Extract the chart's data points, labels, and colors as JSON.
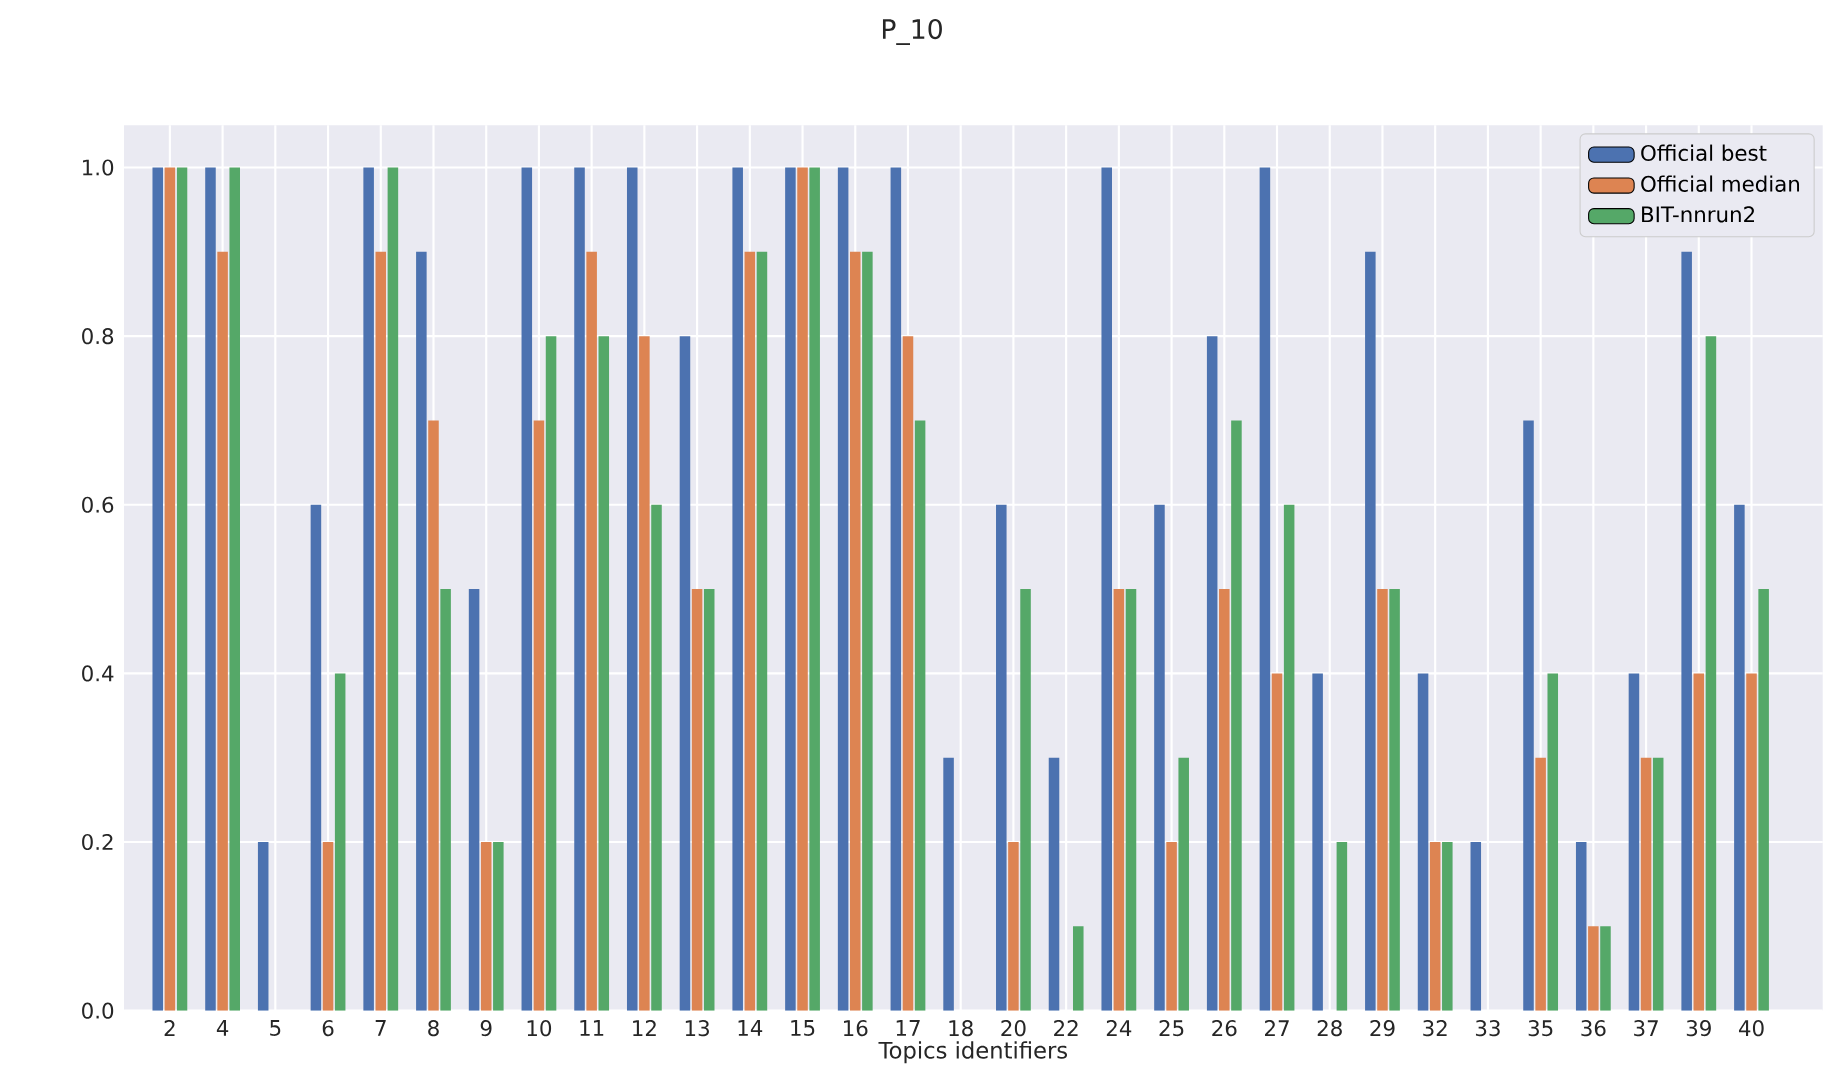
{
  "chart_data": {
    "type": "bar",
    "title": "P_10",
    "xlabel": "Topics identifiers",
    "categories": [
      "2",
      "4",
      "5",
      "6",
      "7",
      "8",
      "9",
      "10",
      "11",
      "12",
      "13",
      "14",
      "15",
      "16",
      "17",
      "18",
      "20",
      "22",
      "24",
      "25",
      "26",
      "27",
      "28",
      "29",
      "32",
      "33",
      "35",
      "36",
      "37",
      "39",
      "40"
    ],
    "series": [
      {
        "name": "Official best",
        "color": "#4c72b0",
        "values": [
          1.0,
          1.0,
          0.2,
          0.6,
          1.0,
          0.9,
          0.5,
          1.0,
          1.0,
          1.0,
          0.8,
          1.0,
          1.0,
          1.0,
          1.0,
          0.3,
          0.6,
          0.3,
          1.0,
          0.6,
          0.8,
          1.0,
          0.4,
          0.9,
          0.4,
          0.2,
          0.7,
          0.2,
          0.4,
          0.9,
          0.6
        ]
      },
      {
        "name": "Official median",
        "color": "#dd8452",
        "values": [
          1.0,
          0.9,
          0.0,
          0.2,
          0.9,
          0.7,
          0.2,
          0.7,
          0.9,
          0.8,
          0.5,
          0.9,
          1.0,
          0.9,
          0.8,
          0.0,
          0.2,
          0.0,
          0.5,
          0.2,
          0.5,
          0.4,
          0.0,
          0.5,
          0.2,
          0.0,
          0.3,
          0.1,
          0.3,
          0.4,
          0.4
        ]
      },
      {
        "name": "BIT-nnrun2",
        "color": "#55a868",
        "values": [
          1.0,
          1.0,
          0.0,
          0.4,
          1.0,
          0.5,
          0.2,
          0.8,
          0.8,
          0.6,
          0.5,
          0.9,
          1.0,
          0.9,
          0.7,
          0.0,
          0.5,
          0.1,
          0.5,
          0.3,
          0.7,
          0.6,
          0.2,
          0.5,
          0.2,
          0.0,
          0.4,
          0.1,
          0.3,
          0.8,
          0.5
        ]
      }
    ],
    "ylim": [
      0,
      1.05
    ],
    "yticks": [
      {
        "value": 0,
        "label": "0.0"
      },
      {
        "value": 0.2,
        "label": "0.2"
      },
      {
        "value": 0.4,
        "label": "0.4"
      },
      {
        "value": 0.6,
        "label": "0.6"
      },
      {
        "value": 0.8,
        "label": "0.8"
      },
      {
        "value": 1.0,
        "label": "1.0"
      }
    ],
    "grid": true,
    "legend": "top right"
  }
}
